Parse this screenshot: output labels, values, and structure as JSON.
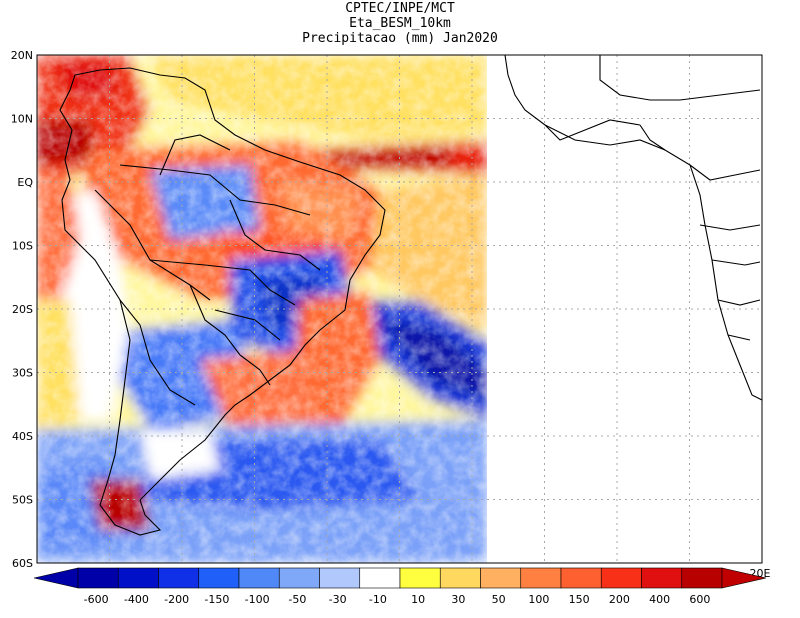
{
  "header": {
    "line1": "CPTEC/INPE/MCT",
    "line2": "Eta_BESM_10km",
    "line3": "Precipitacao (mm) Jan2020"
  },
  "axes": {
    "lat_labels": [
      "20N",
      "10N",
      "EQ",
      "10S",
      "20S",
      "30S",
      "40S",
      "50S",
      "60S"
    ],
    "lon_labels": [
      "20E"
    ]
  },
  "colorbar": {
    "labels": [
      "-600",
      "-400",
      "-200",
      "-150",
      "-100",
      "-50",
      "-30",
      "-10",
      "10",
      "30",
      "50",
      "100",
      "150",
      "200",
      "400",
      "600"
    ],
    "colors": [
      "#0000a8",
      "#0010c8",
      "#1030e8",
      "#2060f8",
      "#5088f8",
      "#80a8f8",
      "#b0c8fc",
      "#ffffff",
      "#ffff40",
      "#ffd860",
      "#ffb060",
      "#ff8040",
      "#ff6030",
      "#f83018",
      "#e01010",
      "#b80000"
    ],
    "arrow_left_color": "#0000a8",
    "arrow_right_color": "#c00000"
  }
}
